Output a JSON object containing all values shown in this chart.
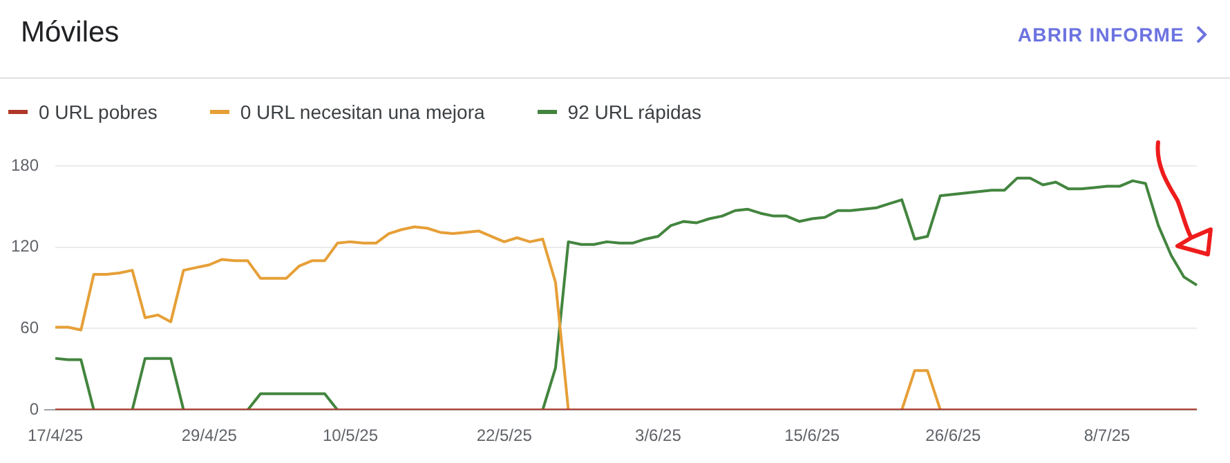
{
  "chart_data": {
    "type": "line",
    "title": "Móviles",
    "annotations": [
      "ABRIR INFORME"
    ],
    "categories": [
      "17/4/25",
      null,
      null,
      null,
      null,
      null,
      null,
      null,
      null,
      null,
      null,
      null,
      "29/4/25",
      null,
      null,
      null,
      null,
      null,
      null,
      null,
      null,
      null,
      null,
      "10/5/25",
      null,
      null,
      null,
      null,
      null,
      null,
      null,
      null,
      null,
      null,
      null,
      "22/5/25",
      null,
      null,
      null,
      null,
      null,
      null,
      null,
      null,
      null,
      null,
      null,
      "3/6/25",
      null,
      null,
      null,
      null,
      null,
      null,
      null,
      null,
      null,
      null,
      null,
      "15/6/25",
      null,
      null,
      null,
      null,
      null,
      null,
      null,
      null,
      null,
      null,
      "26/6/25",
      null,
      null,
      null,
      null,
      null,
      null,
      null,
      null,
      null,
      null,
      null,
      "8/7/25",
      null,
      null,
      null,
      null,
      null,
      null,
      null
    ],
    "series": [
      {
        "name": "0 URL pobres",
        "color": "#b0382a",
        "values": [
          0,
          0,
          0,
          0,
          0,
          0,
          0,
          0,
          0,
          0,
          0,
          0,
          0,
          0,
          0,
          0,
          0,
          0,
          0,
          0,
          0,
          0,
          0,
          0,
          0,
          0,
          0,
          0,
          0,
          0,
          0,
          0,
          0,
          0,
          0,
          0,
          0,
          0,
          0,
          0,
          0,
          0,
          0,
          0,
          0,
          0,
          0,
          0,
          0,
          0,
          0,
          0,
          0,
          0,
          0,
          0,
          0,
          0,
          0,
          0,
          0,
          0,
          0,
          0,
          0,
          0,
          0,
          0,
          0,
          0,
          0,
          0,
          0,
          0,
          0,
          0,
          0,
          0,
          0,
          0,
          0,
          0,
          0,
          0,
          0,
          0,
          0,
          0,
          0,
          0
        ]
      },
      {
        "name": "0 URL necesitan una mejora",
        "color": "#e69f37",
        "values": [
          61,
          61,
          59,
          100,
          100,
          101,
          103,
          68,
          70,
          65,
          103,
          105,
          107,
          111,
          110,
          110,
          97,
          97,
          97,
          106,
          110,
          110,
          123,
          124,
          123,
          123,
          130,
          133,
          135,
          134,
          131,
          130,
          131,
          132,
          128,
          124,
          127,
          124,
          126,
          94,
          0,
          null,
          null,
          null,
          null,
          null,
          null,
          null,
          null,
          null,
          null,
          null,
          null,
          null,
          null,
          null,
          null,
          null,
          null,
          null,
          null,
          null,
          null,
          null,
          null,
          null,
          0,
          29,
          29,
          0,
          null,
          null,
          null,
          null,
          null,
          null,
          null,
          null,
          null,
          null,
          null,
          null,
          null,
          null,
          null,
          null,
          null,
          null,
          null,
          null
        ]
      },
      {
        "name": "92 URL rápidas",
        "color": "#43853f",
        "values": [
          38,
          37,
          37,
          0,
          null,
          null,
          0,
          38,
          38,
          38,
          0,
          null,
          null,
          null,
          null,
          0,
          12,
          12,
          12,
          12,
          12,
          12,
          0,
          null,
          null,
          null,
          null,
          null,
          null,
          null,
          null,
          null,
          null,
          null,
          null,
          null,
          null,
          null,
          0,
          31,
          124,
          122,
          122,
          124,
          123,
          123,
          126,
          128,
          136,
          139,
          138,
          141,
          143,
          147,
          148,
          145,
          143,
          143,
          139,
          141,
          142,
          147,
          147,
          148,
          149,
          152,
          155,
          126,
          128,
          158,
          159,
          160,
          161,
          162,
          162,
          171,
          171,
          166,
          168,
          163,
          163,
          164,
          165,
          165,
          169,
          167,
          136,
          114,
          98,
          92
        ]
      }
    ],
    "ylim": [
      0,
      180
    ],
    "yticks": [
      0,
      60,
      120,
      180
    ],
    "grid": "y",
    "legend": "top left"
  }
}
